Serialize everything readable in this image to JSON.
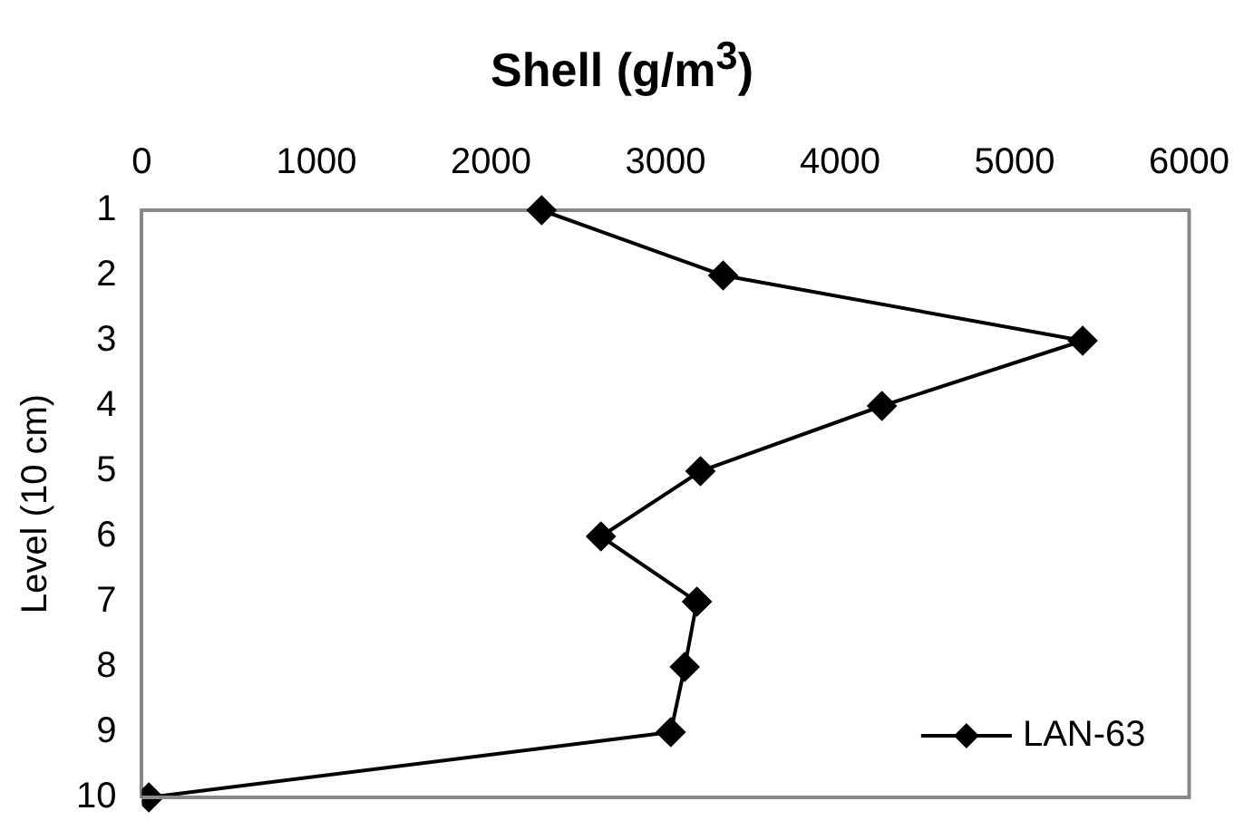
{
  "chart_data": {
    "type": "line",
    "title": "Shell (g/m$^{3}$)",
    "ylabel": "Level (10 cm)",
    "orientation": "horizontal",
    "categories": [
      "1",
      "2",
      "3",
      "4",
      "5",
      "6",
      "7",
      "8",
      "9",
      "10"
    ],
    "series": [
      {
        "name": "LAN-63",
        "color": "#000000",
        "values": [
          2290,
          3330,
          5390,
          4240,
          3200,
          2630,
          3180,
          3110,
          3030,
          40
        ]
      }
    ],
    "xlim": [
      0,
      6000
    ],
    "xticks": [
      0,
      1000,
      2000,
      3000,
      4000,
      5000,
      6000
    ],
    "grid": false,
    "legend": "bottom right",
    "marker": "diamond",
    "line_style": "solid"
  }
}
